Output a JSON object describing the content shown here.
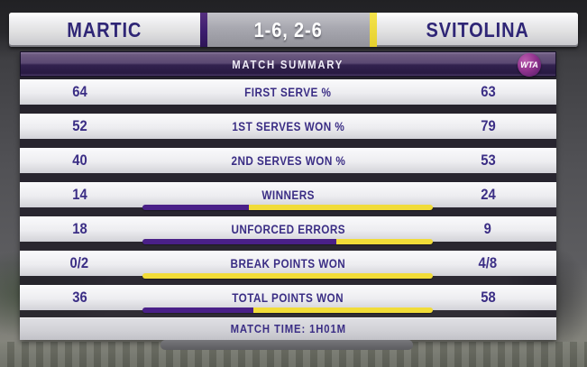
{
  "chart_data": {
    "type": "table",
    "title": "MATCH SUMMARY",
    "players": [
      "MARTIC",
      "SVITOLINA"
    ],
    "score": "1-6, 2-6",
    "categories": [
      "FIRST SERVE %",
      "1ST SERVES WON %",
      "2ND SERVES WON %",
      "WINNERS",
      "UNFORCED ERRORS",
      "BREAK POINTS WON",
      "TOTAL POINTS WON"
    ],
    "series": [
      {
        "name": "MARTIC",
        "values": [
          "64",
          "52",
          "40",
          "14",
          "18",
          "0/2",
          "36"
        ]
      },
      {
        "name": "SVITOLINA",
        "values": [
          "63",
          "79",
          "53",
          "24",
          "9",
          "4/8",
          "58"
        ]
      }
    ],
    "bar_rows": [
      "WINNERS",
      "UNFORCED ERRORS",
      "BREAK POINTS WON",
      "TOTAL POINTS WON"
    ],
    "footer": "MATCH TIME: 1H01M",
    "legend_position": "none"
  },
  "summary_bar": {
    "title": "MATCH SUMMARY",
    "logo_text": "WTA"
  },
  "stats_rows": [
    {
      "left": "64",
      "label": "FIRST SERVE %",
      "right": "63",
      "has_bar": false,
      "left_pct": null
    },
    {
      "left": "52",
      "label": "1ST SERVES WON %",
      "right": "79",
      "has_bar": false,
      "left_pct": null
    },
    {
      "left": "40",
      "label": "2ND SERVES WON %",
      "right": "53",
      "has_bar": false,
      "left_pct": null
    },
    {
      "left": "14",
      "label": "WINNERS",
      "right": "24",
      "has_bar": true,
      "left_pct": 36.8
    },
    {
      "left": "18",
      "label": "UNFORCED ERRORS",
      "right": "9",
      "has_bar": true,
      "left_pct": 66.7
    },
    {
      "left": "0/2",
      "label": "BREAK POINTS WON",
      "right": "4/8",
      "has_bar": true,
      "left_pct": 0
    },
    {
      "left": "36",
      "label": "TOTAL POINTS WON",
      "right": "58",
      "has_bar": true,
      "left_pct": 38.3
    }
  ],
  "colors": {
    "martic_bar": "#4a2088",
    "svitolina_bar": "#f1dc38",
    "header_divider_purple": "#3c1d6e",
    "header_divider_yellow": "#ecd93e",
    "name_text": "#2f2676",
    "stat_text": "#3b2e85",
    "summary_bg": "#2c1c4a",
    "logo_magenta": "#93348f"
  }
}
